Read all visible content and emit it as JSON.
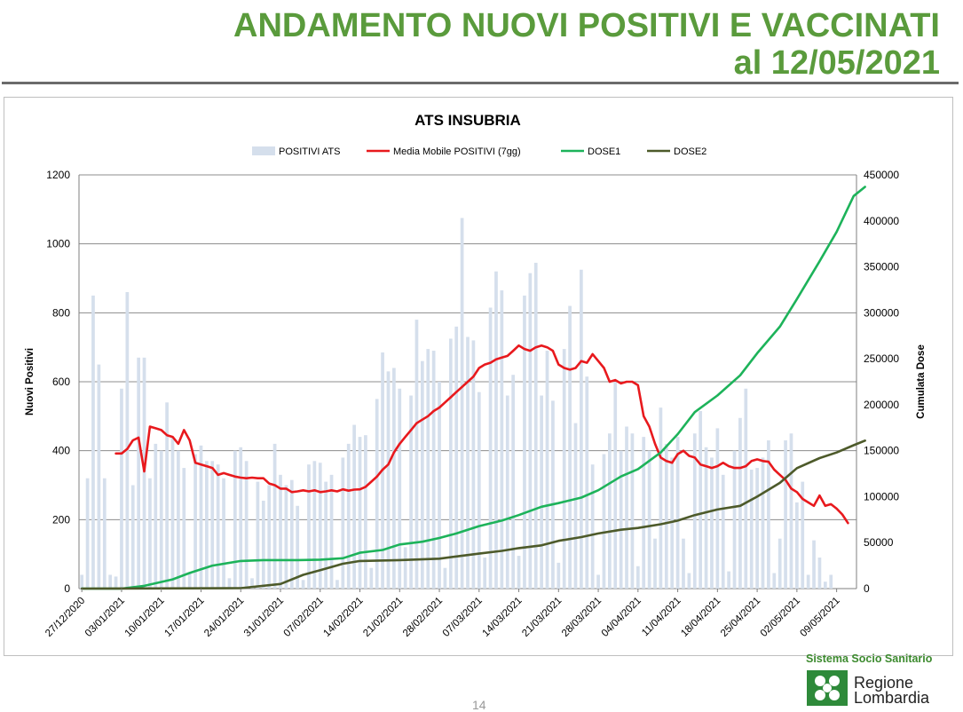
{
  "header": {
    "title_line1": "ANDAMENTO NUOVI POSITIVI E VACCINATI",
    "title_line2": "al 12/05/2021"
  },
  "footer": {
    "organization": "Sistema Socio Sanitario",
    "brand_line1": "Regione",
    "brand_line2": "Lombardia",
    "page_number": "14"
  },
  "colors": {
    "title_green": "#5a9b3c",
    "bars": "#d5dfec",
    "media_mobile": "#e8191d",
    "dose1": "#1db35a",
    "dose2": "#4d5a2a",
    "grid": "#8c8c8c"
  },
  "chart_data": {
    "type": "bar",
    "title": "ATS INSUBRIA",
    "ylabel": "Nuovi Positivi",
    "y2label": "Cumulata Dose",
    "ylim": [
      0,
      1200
    ],
    "y2lim": [
      0,
      450000
    ],
    "yticks": [
      0,
      200,
      400,
      600,
      800,
      1000,
      1200
    ],
    "y2ticks": [
      0,
      50000,
      100000,
      150000,
      200000,
      250000,
      300000,
      350000,
      400000,
      450000
    ],
    "y2tick_labels": [
      "0",
      "50000",
      "100000",
      "150000",
      "200000",
      "250000",
      "300000",
      "350000",
      "400000",
      "450000"
    ],
    "x_start": "2020-12-27",
    "x_end": "2021-05-12",
    "xtick_labels": [
      "27/12/2020",
      "03/01/2021",
      "10/01/2021",
      "17/01/2021",
      "24/01/2021",
      "31/01/2021",
      "07/02/2021",
      "14/02/2021",
      "21/02/2021",
      "28/02/2021",
      "07/03/2021",
      "14/03/2021",
      "21/03/2021",
      "28/03/2021",
      "04/04/2021",
      "11/04/2021",
      "18/04/2021",
      "25/04/2021",
      "02/05/2021",
      "09/05/2021"
    ],
    "grid": "horizontal",
    "legend": "top",
    "legend_entries": [
      "POSITIVI ATS",
      "Media Mobile POSITIVI (7gg)",
      "DOSE1",
      "DOSE2"
    ],
    "series": [
      {
        "name": "POSITIVI ATS",
        "type": "bar",
        "axis": "left",
        "values": [
          40,
          320,
          850,
          650,
          320,
          40,
          35,
          580,
          860,
          300,
          670,
          670,
          320,
          420,
          400,
          540,
          440,
          400,
          350,
          45,
          390,
          415,
          370,
          370,
          360,
          320,
          30,
          400,
          410,
          370,
          30,
          310,
          255,
          300,
          420,
          330,
          300,
          315,
          240,
          25,
          360,
          370,
          365,
          310,
          330,
          25,
          380,
          420,
          475,
          440,
          445,
          60,
          550,
          685,
          630,
          640,
          580,
          120,
          560,
          780,
          660,
          695,
          690,
          600,
          60,
          725,
          760,
          1075,
          730,
          720,
          570,
          90,
          815,
          920,
          865,
          560,
          620,
          95,
          850,
          915,
          945,
          560,
          690,
          545,
          75,
          695,
          820,
          480,
          925,
          615,
          360,
          40,
          390,
          450,
          600,
          400,
          470,
          450,
          65,
          440,
          400,
          145,
          525,
          420,
          380,
          440,
          145,
          45,
          450,
          515,
          410,
          380,
          465,
          330,
          50,
          400,
          495,
          580,
          345,
          350,
          380,
          430,
          45,
          145,
          430,
          450,
          250,
          310,
          40,
          140,
          90,
          20,
          40
        ]
      },
      {
        "name": "Media Mobile POSITIVI (7gg)",
        "type": "line",
        "axis": "left",
        "x_start": "2021-01-02",
        "values": [
          392,
          392,
          405,
          430,
          438,
          340,
          470,
          465,
          460,
          445,
          440,
          420,
          460,
          430,
          365,
          360,
          355,
          350,
          330,
          335,
          330,
          325,
          322,
          320,
          322,
          320,
          320,
          305,
          300,
          290,
          290,
          280,
          282,
          285,
          282,
          285,
          280,
          282,
          285,
          282,
          288,
          284,
          287,
          288,
          295,
          310,
          325,
          345,
          360,
          395,
          420,
          440,
          460,
          480,
          490,
          500,
          515,
          525,
          540,
          555,
          570,
          585,
          600,
          615,
          640,
          650,
          655,
          665,
          670,
          675,
          690,
          705,
          695,
          690,
          700,
          705,
          700,
          690,
          650,
          640,
          635,
          640,
          660,
          655,
          680,
          660,
          640,
          600,
          605,
          595,
          600,
          600,
          590,
          500,
          470,
          420,
          380,
          370,
          365,
          390,
          400,
          385,
          380,
          360,
          355,
          350,
          355,
          365,
          355,
          350,
          350,
          355,
          370,
          375,
          370,
          368,
          345,
          330,
          315,
          290,
          280,
          260,
          250,
          240,
          270,
          240,
          245,
          232,
          215,
          190
        ]
      },
      {
        "name": "DOSE1",
        "type": "line",
        "axis": "right",
        "points": [
          [
            "2020-12-27",
            0
          ],
          [
            "2021-01-03",
            0
          ],
          [
            "2021-01-07",
            3000
          ],
          [
            "2021-01-12",
            10000
          ],
          [
            "2021-01-15",
            17000
          ],
          [
            "2021-01-19",
            25000
          ],
          [
            "2021-01-24",
            30000
          ],
          [
            "2021-01-28",
            31000
          ],
          [
            "2021-02-03",
            31000
          ],
          [
            "2021-02-07",
            31500
          ],
          [
            "2021-02-11",
            33000
          ],
          [
            "2021-02-14",
            39000
          ],
          [
            "2021-02-18",
            42000
          ],
          [
            "2021-02-21",
            48000
          ],
          [
            "2021-02-25",
            51000
          ],
          [
            "2021-02-28",
            55000
          ],
          [
            "2021-03-03",
            60000
          ],
          [
            "2021-03-07",
            68000
          ],
          [
            "2021-03-11",
            74000
          ],
          [
            "2021-03-14",
            80000
          ],
          [
            "2021-03-18",
            89000
          ],
          [
            "2021-03-21",
            93000
          ],
          [
            "2021-03-25",
            99000
          ],
          [
            "2021-03-28",
            107000
          ],
          [
            "2021-04-01",
            122000
          ],
          [
            "2021-04-04",
            130000
          ],
          [
            "2021-04-08",
            148000
          ],
          [
            "2021-04-11",
            168000
          ],
          [
            "2021-04-14",
            192000
          ],
          [
            "2021-04-18",
            210000
          ],
          [
            "2021-04-22",
            232000
          ],
          [
            "2021-04-25",
            256000
          ],
          [
            "2021-04-29",
            285000
          ],
          [
            "2021-05-02",
            315000
          ],
          [
            "2021-05-06",
            356000
          ],
          [
            "2021-05-09",
            388000
          ],
          [
            "2021-05-12",
            427000
          ],
          [
            "2021-05-14",
            437000
          ]
        ]
      },
      {
        "name": "DOSE2",
        "type": "line",
        "axis": "right",
        "points": [
          [
            "2020-12-27",
            0
          ],
          [
            "2021-01-24",
            500
          ],
          [
            "2021-01-31",
            5000
          ],
          [
            "2021-02-04",
            15000
          ],
          [
            "2021-02-07",
            20000
          ],
          [
            "2021-02-11",
            27000
          ],
          [
            "2021-02-14",
            30000
          ],
          [
            "2021-02-21",
            31000
          ],
          [
            "2021-02-28",
            32500
          ],
          [
            "2021-03-03",
            35000
          ],
          [
            "2021-03-07",
            38000
          ],
          [
            "2021-03-11",
            41000
          ],
          [
            "2021-03-14",
            44000
          ],
          [
            "2021-03-18",
            47000
          ],
          [
            "2021-03-21",
            52000
          ],
          [
            "2021-03-25",
            56000
          ],
          [
            "2021-03-28",
            60000
          ],
          [
            "2021-04-01",
            64000
          ],
          [
            "2021-04-04",
            66000
          ],
          [
            "2021-04-08",
            70000
          ],
          [
            "2021-04-11",
            74000
          ],
          [
            "2021-04-14",
            80000
          ],
          [
            "2021-04-18",
            86000
          ],
          [
            "2021-04-22",
            90000
          ],
          [
            "2021-04-25",
            100000
          ],
          [
            "2021-04-29",
            115000
          ],
          [
            "2021-05-02",
            131000
          ],
          [
            "2021-05-06",
            142000
          ],
          [
            "2021-05-09",
            148000
          ],
          [
            "2021-05-12",
            156000
          ],
          [
            "2021-05-14",
            161000
          ]
        ]
      }
    ]
  }
}
